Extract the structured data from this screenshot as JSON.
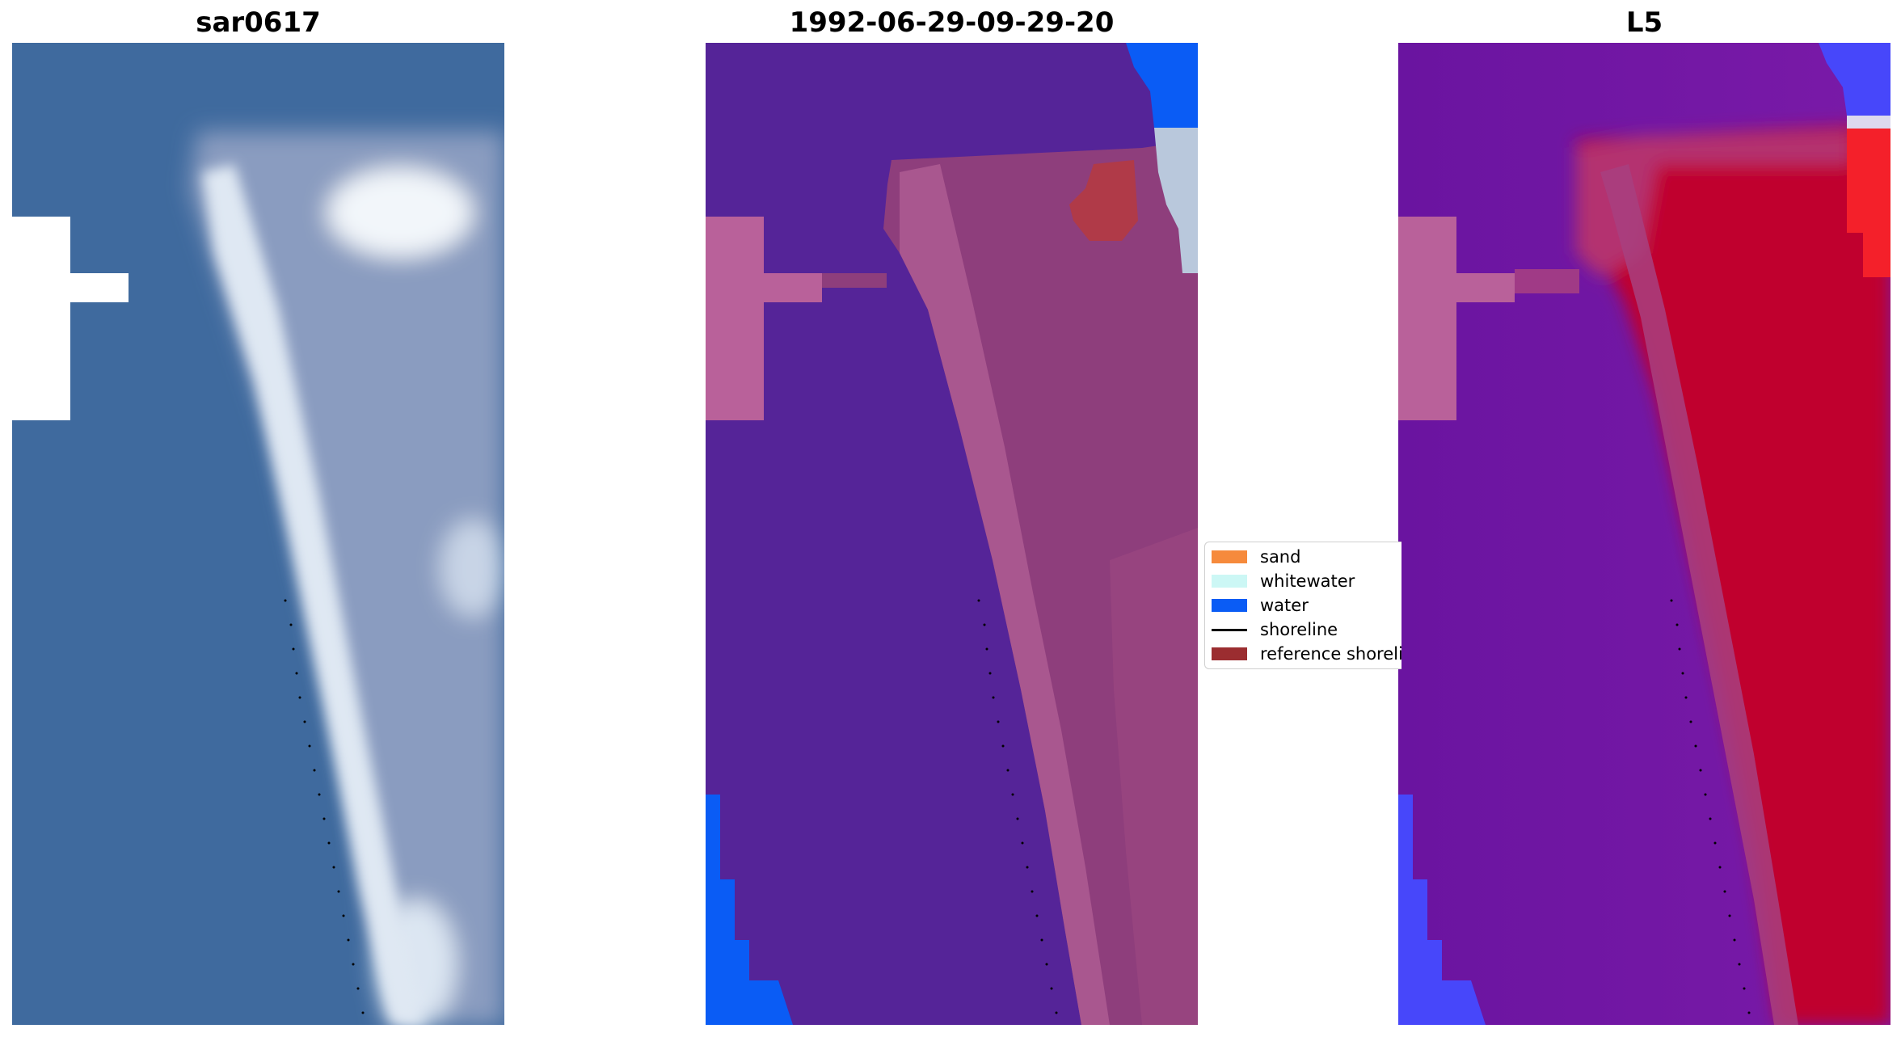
{
  "panels": [
    {
      "title": "sar0617"
    },
    {
      "title": "1992-06-29-09-29-20"
    },
    {
      "title": "L5"
    }
  ],
  "legend": {
    "items": [
      {
        "label": "sand",
        "color": "#f68a3c",
        "kind": "patch"
      },
      {
        "label": "whitewater",
        "color": "#ccf7f5",
        "kind": "patch"
      },
      {
        "label": "water",
        "color": "#0a5cf5",
        "kind": "patch"
      },
      {
        "label": "shoreline",
        "color": "#000000",
        "kind": "line"
      },
      {
        "label": "reference shoreline",
        "color": "#9b2d30",
        "kind": "patch"
      }
    ]
  },
  "colors": {
    "rgb_water": "#3f6a9e",
    "rgb_sand": "#8f9fc2",
    "rgb_whitewater": "#e6edf5",
    "class_background": "#552498",
    "class_sand": "#8b3a78",
    "class_whitewater_blend": "#b36398",
    "class_water": "#0a5cf5",
    "class_reference": "#b03a48",
    "mndwi_land": "#c0052f",
    "mndwi_water": "#6a14a0",
    "mndwi_blue": "#4747fa",
    "nodata_pink": "#b9619a"
  }
}
